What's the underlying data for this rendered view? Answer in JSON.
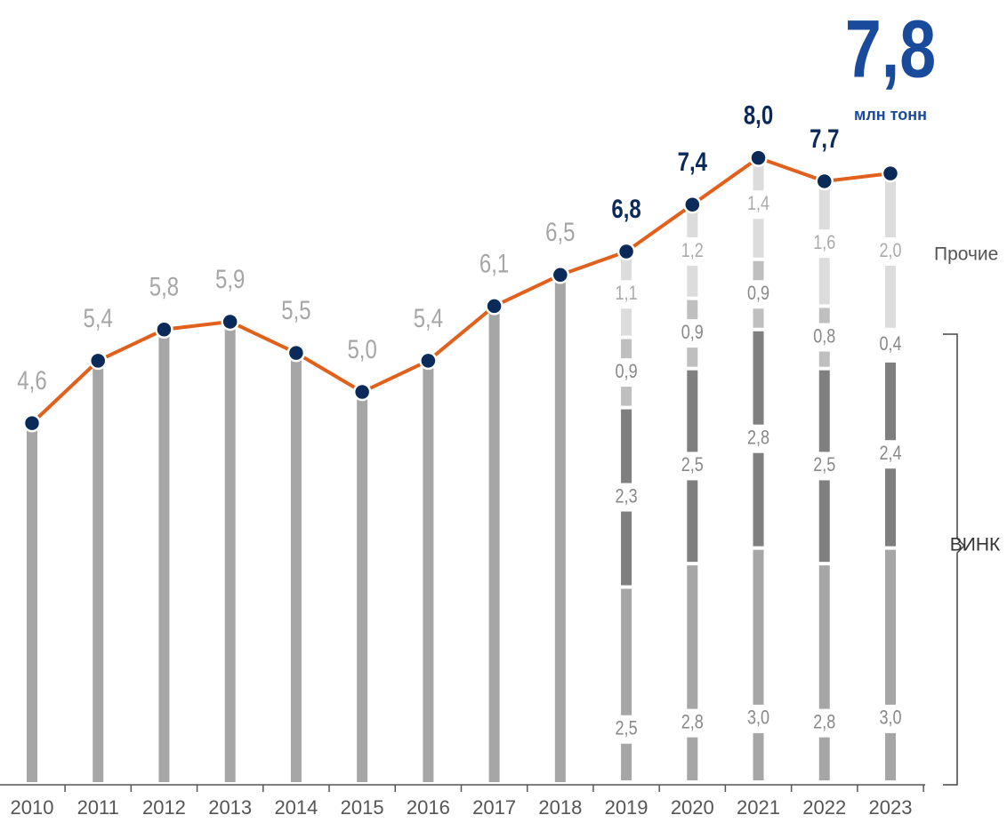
{
  "chart_data": {
    "type": "line-stack",
    "categories": [
      "2010",
      "2011",
      "2012",
      "2013",
      "2014",
      "2015",
      "2016",
      "2017",
      "2018",
      "2019",
      "2020",
      "2021",
      "2022",
      "2023"
    ],
    "values": [
      4.6,
      5.4,
      5.8,
      5.9,
      5.5,
      5.0,
      5.4,
      6.1,
      6.5,
      6.8,
      7.4,
      8.0,
      7.7,
      7.8
    ],
    "value_labels": [
      "4,6",
      "5,4",
      "5,8",
      "5,9",
      "5,5",
      "5,0",
      "5,4",
      "6,1",
      "6,5",
      "6,8",
      "7,4",
      "8,0",
      "7,7",
      "7,8"
    ],
    "line_color": "#e0601c",
    "marker_color": "#0a2a5a",
    "bar_color": "#a6a6a6",
    "highlight_color": "#1a4a9c",
    "unit": "млн тонн",
    "ylim": [
      0,
      10
    ],
    "segments": [
      {
        "color": "#a6a6a6",
        "values": [
          null,
          null,
          null,
          null,
          null,
          null,
          null,
          null,
          null,
          2.5,
          2.8,
          3.0,
          2.8,
          3.0
        ],
        "value_labels": [
          null,
          null,
          null,
          null,
          null,
          null,
          null,
          null,
          null,
          "2,5",
          "2,8",
          "3,0",
          "2,8",
          "3,0"
        ]
      },
      {
        "color": "#7f7f7f",
        "values": [
          null,
          null,
          null,
          null,
          null,
          null,
          null,
          null,
          null,
          2.3,
          2.5,
          2.8,
          2.5,
          2.4
        ],
        "value_labels": [
          null,
          null,
          null,
          null,
          null,
          null,
          null,
          null,
          null,
          "2,3",
          "2,5",
          "2,8",
          "2,5",
          "2,4"
        ]
      },
      {
        "color": "#bfbfbf",
        "values": [
          null,
          null,
          null,
          null,
          null,
          null,
          null,
          null,
          null,
          0.9,
          0.9,
          0.9,
          0.8,
          0.4
        ],
        "value_labels": [
          null,
          null,
          null,
          null,
          null,
          null,
          null,
          null,
          null,
          "0,9",
          "0,9",
          "0,9",
          "0,8",
          "0,4"
        ]
      },
      {
        "color": "#dcdcdc",
        "values": [
          null,
          null,
          null,
          null,
          null,
          null,
          null,
          null,
          null,
          1.1,
          1.2,
          1.4,
          1.6,
          2.0
        ],
        "value_labels": [
          null,
          null,
          null,
          null,
          null,
          null,
          null,
          null,
          null,
          "1,1",
          "1,2",
          "1,4",
          "1,6",
          "2,0"
        ]
      }
    ],
    "group_labels": {
      "others": "Прочие",
      "vink": "ВИНК"
    }
  }
}
